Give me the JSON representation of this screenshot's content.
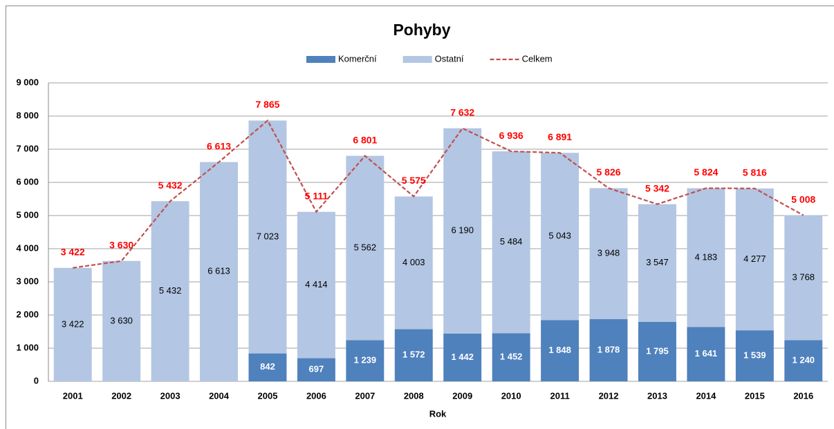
{
  "chart_data": {
    "type": "bar",
    "stacked": true,
    "title": "Pohyby",
    "x_label": "Rok",
    "categories": [
      "2001",
      "2002",
      "2003",
      "2004",
      "2005",
      "2006",
      "2007",
      "2008",
      "2009",
      "2010",
      "2011",
      "2012",
      "2013",
      "2014",
      "2015",
      "2016"
    ],
    "series": [
      {
        "name": "Komerční",
        "type": "bar",
        "color": "#4f81bd",
        "values": [
          0,
          0,
          0,
          0,
          842,
          697,
          1239,
          1572,
          1442,
          1452,
          1848,
          1878,
          1795,
          1641,
          1539,
          1240
        ],
        "value_labels": [
          "0",
          "0",
          "0",
          "0",
          "842",
          "697",
          "1 239",
          "1 572",
          "1 442",
          "1 452",
          "1 848",
          "1 878",
          "1 795",
          "1 641",
          "1 539",
          "1 240"
        ]
      },
      {
        "name": "Ostatní",
        "type": "bar",
        "color": "#b3c6e3",
        "values": [
          3422,
          3630,
          5432,
          6613,
          7023,
          4414,
          5562,
          4003,
          6190,
          5484,
          5043,
          3948,
          3547,
          4183,
          4277,
          3768
        ],
        "value_labels": [
          "3 422",
          "3 630",
          "5 432",
          "6 613",
          "7 023",
          "4 414",
          "5 562",
          "4 003",
          "6 190",
          "5 484",
          "5 043",
          "3 948",
          "3 547",
          "4 183",
          "4 277",
          "3 768"
        ]
      },
      {
        "name": "Celkem",
        "type": "line",
        "color": "#c0504d",
        "values": [
          3422,
          3630,
          5432,
          6613,
          7865,
          5111,
          6801,
          5575,
          7632,
          6936,
          6891,
          5826,
          5342,
          5824,
          5816,
          5008
        ],
        "value_labels": [
          "3 422",
          "3 630",
          "5 432",
          "6 613",
          "7 865",
          "5 111",
          "6 801",
          "5 575",
          "7 632",
          "6 936",
          "6 891",
          "5 826",
          "5 342",
          "5 824",
          "5 816",
          "5 008"
        ]
      }
    ],
    "ylim": [
      0,
      9000
    ],
    "yticks": [
      0,
      {
        "value": 1000,
        "label": "1 000"
      },
      {
        "value": 2000,
        "label": "2 000"
      },
      {
        "value": 3000,
        "label": "3 000"
      },
      {
        "value": 4000,
        "label": "4 000"
      },
      {
        "value": 5000,
        "label": "5 000"
      },
      {
        "value": 6000,
        "label": "6 000"
      },
      {
        "value": 7000,
        "label": "7 000"
      },
      {
        "value": 8000,
        "label": "8 000"
      },
      {
        "value": 9000,
        "label": "9 000"
      }
    ],
    "grid": true,
    "legend": "top"
  }
}
